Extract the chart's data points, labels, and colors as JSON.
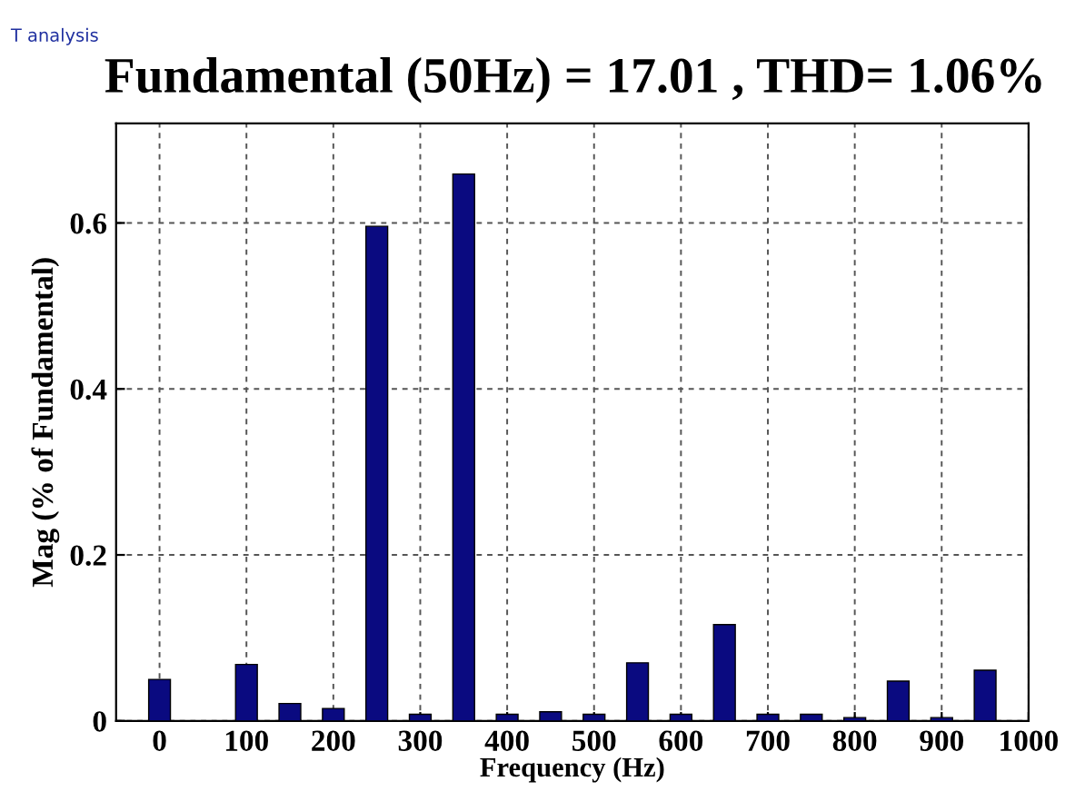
{
  "chart_data": {
    "type": "bar",
    "title": "Fundamental (50Hz) = 17.01 , THD= 1.06%",
    "xlabel": "Frequency (Hz)",
    "ylabel": "Mag (% of Fundamental)",
    "annotations": [
      "T analysis"
    ],
    "x": [
      0,
      50,
      100,
      150,
      200,
      250,
      300,
      350,
      400,
      450,
      500,
      550,
      600,
      650,
      700,
      750,
      800,
      850,
      900,
      950
    ],
    "values": [
      0.05,
      null,
      0.068,
      0.021,
      0.015,
      0.596,
      0.008,
      0.659,
      0.008,
      0.011,
      0.008,
      0.07,
      0.008,
      0.116,
      0.008,
      0.008,
      0.004,
      0.048,
      0.004,
      0.061
    ],
    "color": "#0a0a80",
    "xlim": [
      -50,
      1000
    ],
    "xticks": [
      0,
      100,
      200,
      300,
      400,
      500,
      600,
      700,
      800,
      900,
      1000
    ],
    "ylim": [
      0,
      0.72
    ],
    "yticks": [
      0,
      0.2,
      0.4,
      0.6
    ],
    "grid": true,
    "line_style": "dashed"
  }
}
